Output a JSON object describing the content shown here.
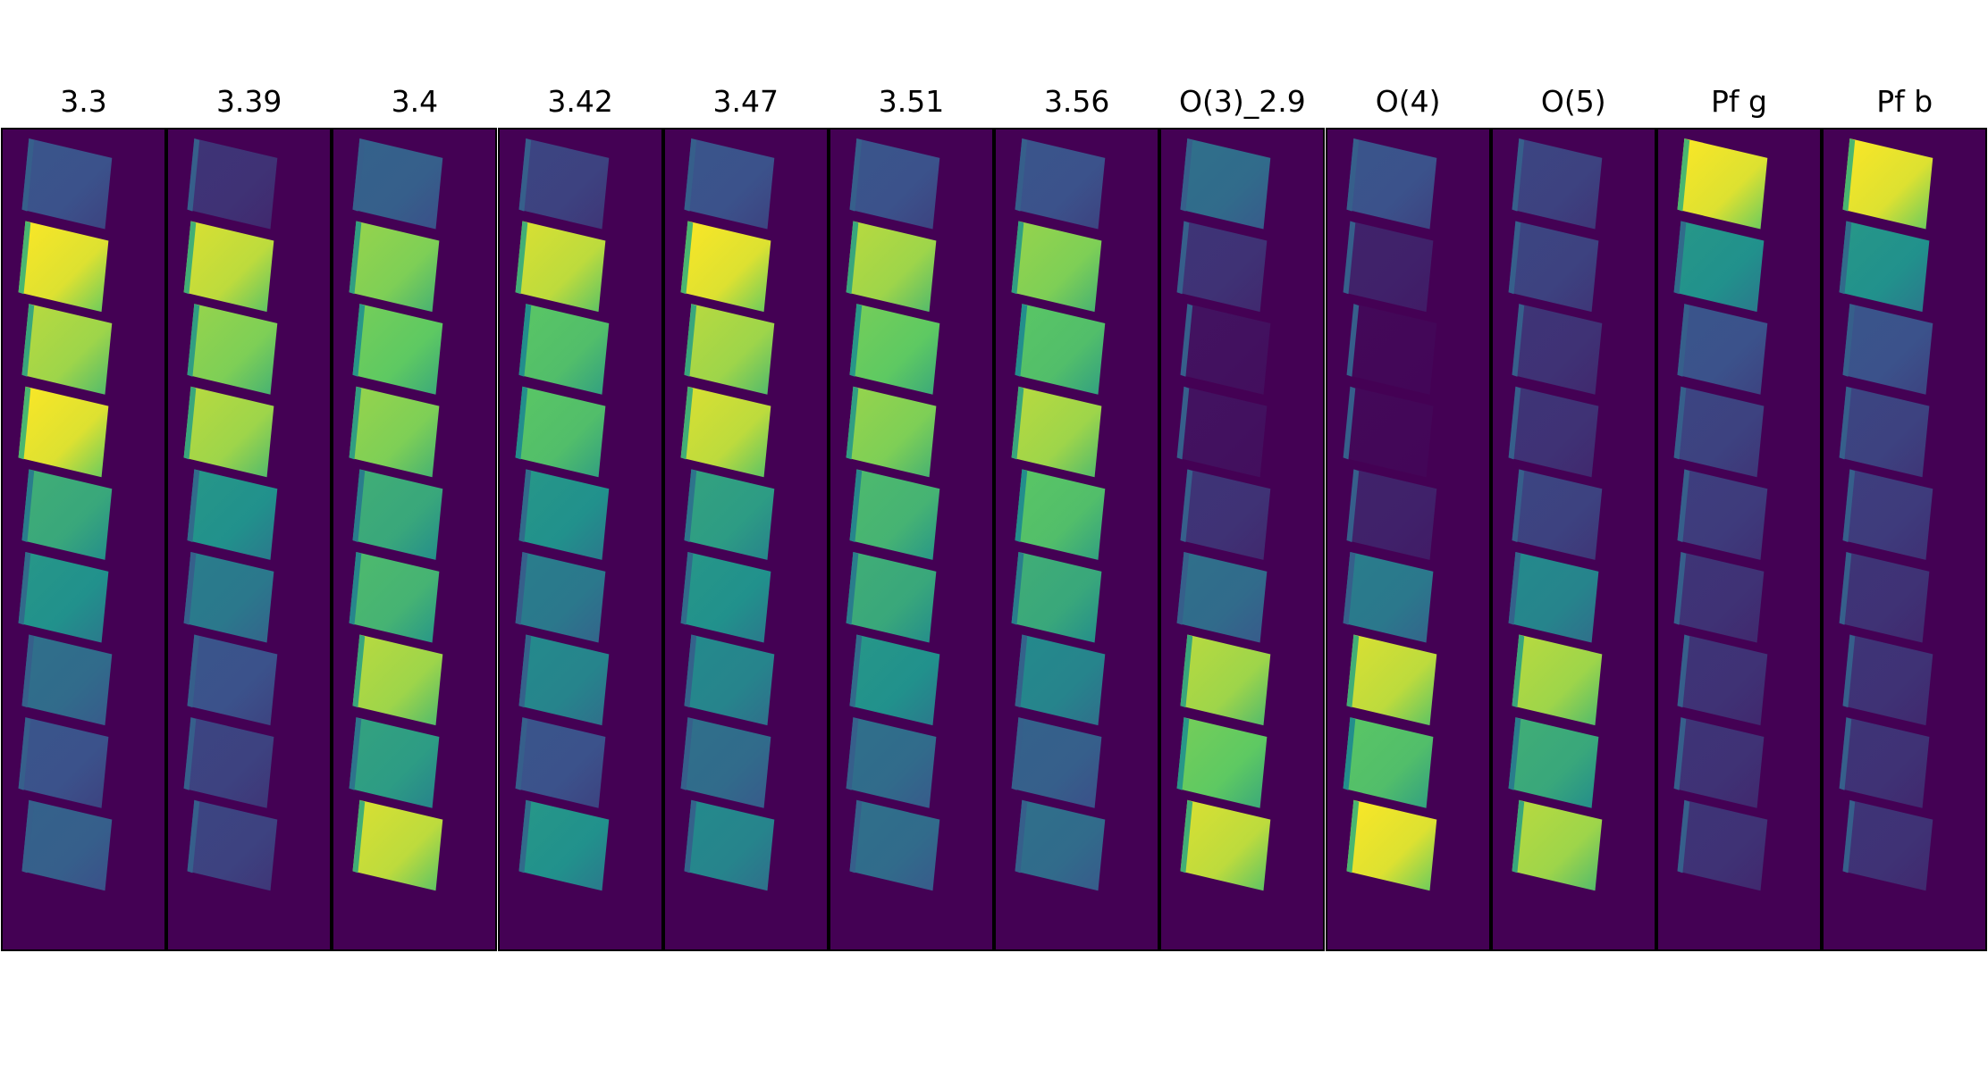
{
  "figure": {
    "background_color": "#440154",
    "colormap": "viridis",
    "panels": [
      {
        "title": "3.3",
        "profile": [
          0.25,
          0.95,
          0.85,
          0.95,
          0.6,
          0.5,
          0.35,
          0.25,
          0.3
        ]
      },
      {
        "title": "3.39",
        "profile": [
          0.15,
          0.9,
          0.8,
          0.85,
          0.5,
          0.4,
          0.25,
          0.2,
          0.2
        ]
      },
      {
        "title": "3.4",
        "profile": [
          0.3,
          0.8,
          0.75,
          0.8,
          0.6,
          0.65,
          0.85,
          0.55,
          0.9
        ]
      },
      {
        "title": "3.42",
        "profile": [
          0.2,
          0.9,
          0.7,
          0.7,
          0.5,
          0.4,
          0.45,
          0.25,
          0.5
        ]
      },
      {
        "title": "3.47",
        "profile": [
          0.25,
          0.95,
          0.85,
          0.9,
          0.55,
          0.5,
          0.45,
          0.35,
          0.45
        ]
      },
      {
        "title": "3.51",
        "profile": [
          0.25,
          0.85,
          0.75,
          0.8,
          0.65,
          0.6,
          0.5,
          0.35,
          0.35
        ]
      },
      {
        "title": "3.56",
        "profile": [
          0.25,
          0.8,
          0.7,
          0.85,
          0.7,
          0.6,
          0.45,
          0.3,
          0.35
        ]
      },
      {
        "title": "O(3)_2.9",
        "profile": [
          0.35,
          0.15,
          0.05,
          0.05,
          0.15,
          0.35,
          0.85,
          0.75,
          0.9
        ]
      },
      {
        "title": "O(4)",
        "profile": [
          0.25,
          0.1,
          0.02,
          0.02,
          0.1,
          0.4,
          0.9,
          0.7,
          0.95
        ]
      },
      {
        "title": "O(5)",
        "profile": [
          0.2,
          0.2,
          0.15,
          0.15,
          0.2,
          0.45,
          0.85,
          0.6,
          0.85
        ]
      },
      {
        "title": "Pf g",
        "profile": [
          0.95,
          0.5,
          0.25,
          0.2,
          0.18,
          0.15,
          0.15,
          0.15,
          0.15
        ]
      },
      {
        "title": "Pf b",
        "profile": [
          0.95,
          0.5,
          0.25,
          0.2,
          0.18,
          0.15,
          0.15,
          0.15,
          0.15
        ]
      }
    ]
  }
}
